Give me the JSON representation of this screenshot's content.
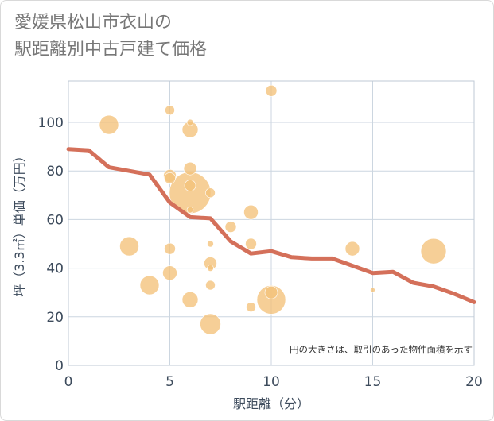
{
  "chart_data": {
    "type": "scatter",
    "title_lines": [
      "愛媛県松山市衣山の",
      "駅距離別中古戸建て価格"
    ],
    "xlabel": "駅距離（分）",
    "ylabel": "坪（3.3㎡）単価（万円）",
    "xlim": [
      0,
      20
    ],
    "ylim": [
      0,
      117
    ],
    "x_ticks": [
      0,
      5,
      10,
      15,
      20
    ],
    "y_ticks": [
      0,
      20,
      40,
      60,
      80,
      100
    ],
    "grid": true,
    "note": "円の大きさは、取引のあった物件面積を示す",
    "colors": {
      "bubble": "#f3c27a",
      "trend": "#d4705a",
      "grid": "#ccd6e0",
      "plot_border": "#bfc9d4"
    },
    "scatter_series": [
      {
        "x": 2,
        "y": 99,
        "size": 12
      },
      {
        "x": 5,
        "y": 105,
        "size": 6
      },
      {
        "x": 6,
        "y": 100,
        "size": 4
      },
      {
        "x": 6,
        "y": 97,
        "size": 10
      },
      {
        "x": 10,
        "y": 113,
        "size": 7
      },
      {
        "x": 5,
        "y": 78,
        "size": 8
      },
      {
        "x": 5,
        "y": 77,
        "size": 7
      },
      {
        "x": 6,
        "y": 81,
        "size": 8
      },
      {
        "x": 6,
        "y": 74,
        "size": 7
      },
      {
        "x": 6,
        "y": 71,
        "size": 26
      },
      {
        "x": 7,
        "y": 71,
        "size": 6
      },
      {
        "x": 6,
        "y": 64,
        "size": 4
      },
      {
        "x": 9,
        "y": 63,
        "size": 9
      },
      {
        "x": 8,
        "y": 57,
        "size": 7
      },
      {
        "x": 9,
        "y": 50,
        "size": 7
      },
      {
        "x": 7,
        "y": 50,
        "size": 4
      },
      {
        "x": 3,
        "y": 49,
        "size": 12
      },
      {
        "x": 5,
        "y": 48,
        "size": 7
      },
      {
        "x": 7,
        "y": 42,
        "size": 8
      },
      {
        "x": 7,
        "y": 40,
        "size": 4
      },
      {
        "x": 5,
        "y": 38,
        "size": 9
      },
      {
        "x": 4,
        "y": 33,
        "size": 12
      },
      {
        "x": 7,
        "y": 33,
        "size": 6
      },
      {
        "x": 6,
        "y": 27,
        "size": 10
      },
      {
        "x": 10,
        "y": 30,
        "size": 8
      },
      {
        "x": 10,
        "y": 27,
        "size": 18
      },
      {
        "x": 9,
        "y": 24,
        "size": 6
      },
      {
        "x": 7,
        "y": 17,
        "size": 13
      },
      {
        "x": 14,
        "y": 48,
        "size": 9
      },
      {
        "x": 15,
        "y": 31,
        "size": 3
      },
      {
        "x": 18,
        "y": 47,
        "size": 16
      }
    ],
    "trend_series": {
      "x": [
        0,
        1,
        2,
        3,
        4,
        5,
        6,
        7,
        8,
        9,
        10,
        11,
        12,
        13,
        14,
        15,
        16,
        17,
        18,
        19,
        20
      ],
      "y": [
        89,
        88.5,
        81.5,
        80,
        78.5,
        67,
        61,
        60.5,
        51,
        46,
        47,
        44.5,
        44,
        44,
        41,
        38,
        38.5,
        34,
        32.5,
        29.5,
        26
      ]
    }
  }
}
